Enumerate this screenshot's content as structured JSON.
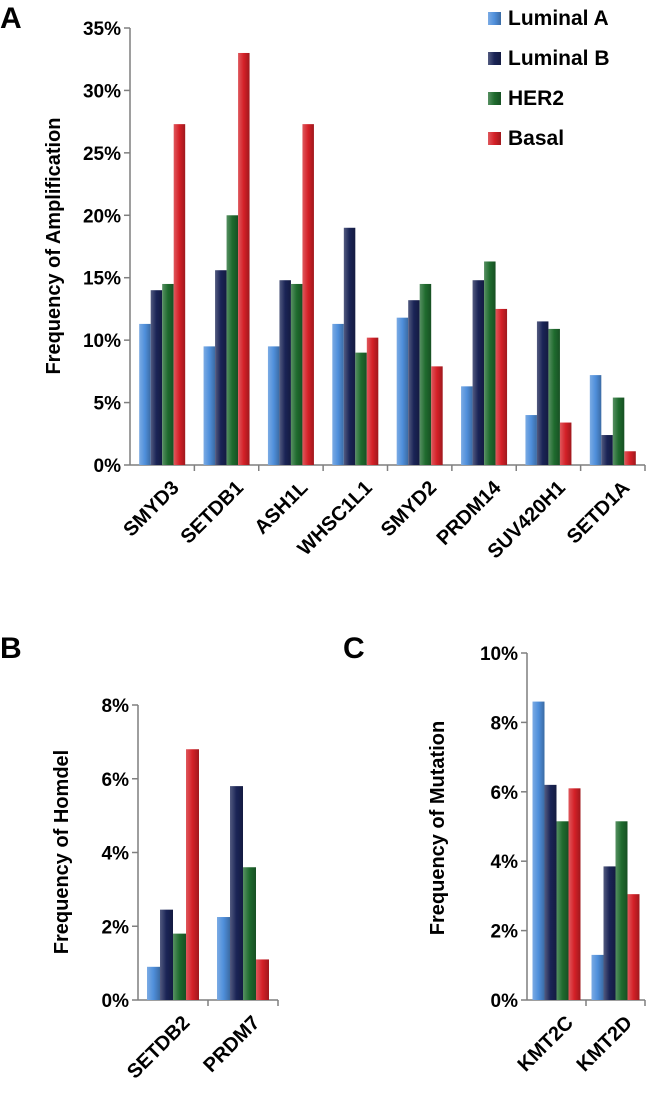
{
  "chart_data": [
    {
      "panel": "A",
      "type": "bar",
      "ylabel": "Frequency of Amplification",
      "ylim": [
        0,
        35
      ],
      "yticks": [
        0,
        5,
        10,
        15,
        20,
        25,
        30,
        35
      ],
      "ytick_labels": [
        "0%",
        "5%",
        "10%",
        "15%",
        "20%",
        "25%",
        "30%",
        "35%"
      ],
      "categories": [
        "SMYD3",
        "SETDB1",
        "ASH1L",
        "WHSC1L1",
        "SMYD2",
        "PRDM14",
        "SUV420H1",
        "SETD1A"
      ],
      "series": [
        {
          "name": "Luminal A",
          "color": "#4f8fdb",
          "values": [
            11.3,
            9.5,
            9.5,
            11.3,
            11.8,
            6.3,
            4.0,
            7.2
          ]
        },
        {
          "name": "Luminal B",
          "color": "#1a2456",
          "values": [
            14.0,
            15.6,
            14.8,
            19.0,
            13.2,
            14.8,
            11.5,
            2.4
          ]
        },
        {
          "name": "HER2",
          "color": "#1f6b2e",
          "values": [
            14.5,
            20.0,
            14.5,
            9.0,
            14.5,
            16.3,
            10.9,
            5.4
          ]
        },
        {
          "name": "Basal",
          "color": "#d42027",
          "values": [
            27.3,
            33.0,
            27.3,
            10.2,
            7.9,
            12.5,
            3.4,
            1.1
          ]
        }
      ],
      "legend": "top-right"
    },
    {
      "panel": "B",
      "type": "bar",
      "ylabel": "Frequency of Homdel",
      "ylim": [
        0,
        8
      ],
      "yticks": [
        0,
        2,
        4,
        6,
        8
      ],
      "ytick_labels": [
        "0%",
        "2%",
        "4%",
        "6%",
        "8%"
      ],
      "categories": [
        "SETDB2",
        "PRDM7"
      ],
      "series": [
        {
          "name": "Luminal A",
          "color": "#4f8fdb",
          "values": [
            0.9,
            2.25
          ]
        },
        {
          "name": "Luminal B",
          "color": "#1a2456",
          "values": [
            2.45,
            5.8
          ]
        },
        {
          "name": "HER2",
          "color": "#1f6b2e",
          "values": [
            1.8,
            3.6
          ]
        },
        {
          "name": "Basal",
          "color": "#d42027",
          "values": [
            6.8,
            1.1
          ]
        }
      ]
    },
    {
      "panel": "C",
      "type": "bar",
      "ylabel": "Frequency of Mutation",
      "ylim": [
        0,
        10
      ],
      "yticks": [
        0,
        2,
        4,
        6,
        8,
        10
      ],
      "ytick_labels": [
        "0%",
        "2%",
        "4%",
        "6%",
        "8%",
        "10%"
      ],
      "categories": [
        "KMT2C",
        "KMT2D"
      ],
      "series": [
        {
          "name": "Luminal A",
          "color": "#4f8fdb",
          "values": [
            8.6,
            1.3
          ]
        },
        {
          "name": "Luminal B",
          "color": "#1a2456",
          "values": [
            6.2,
            3.85
          ]
        },
        {
          "name": "HER2",
          "color": "#1f6b2e",
          "values": [
            5.15,
            5.15
          ]
        },
        {
          "name": "Basal",
          "color": "#d42027",
          "values": [
            6.1,
            3.05
          ]
        }
      ]
    }
  ]
}
